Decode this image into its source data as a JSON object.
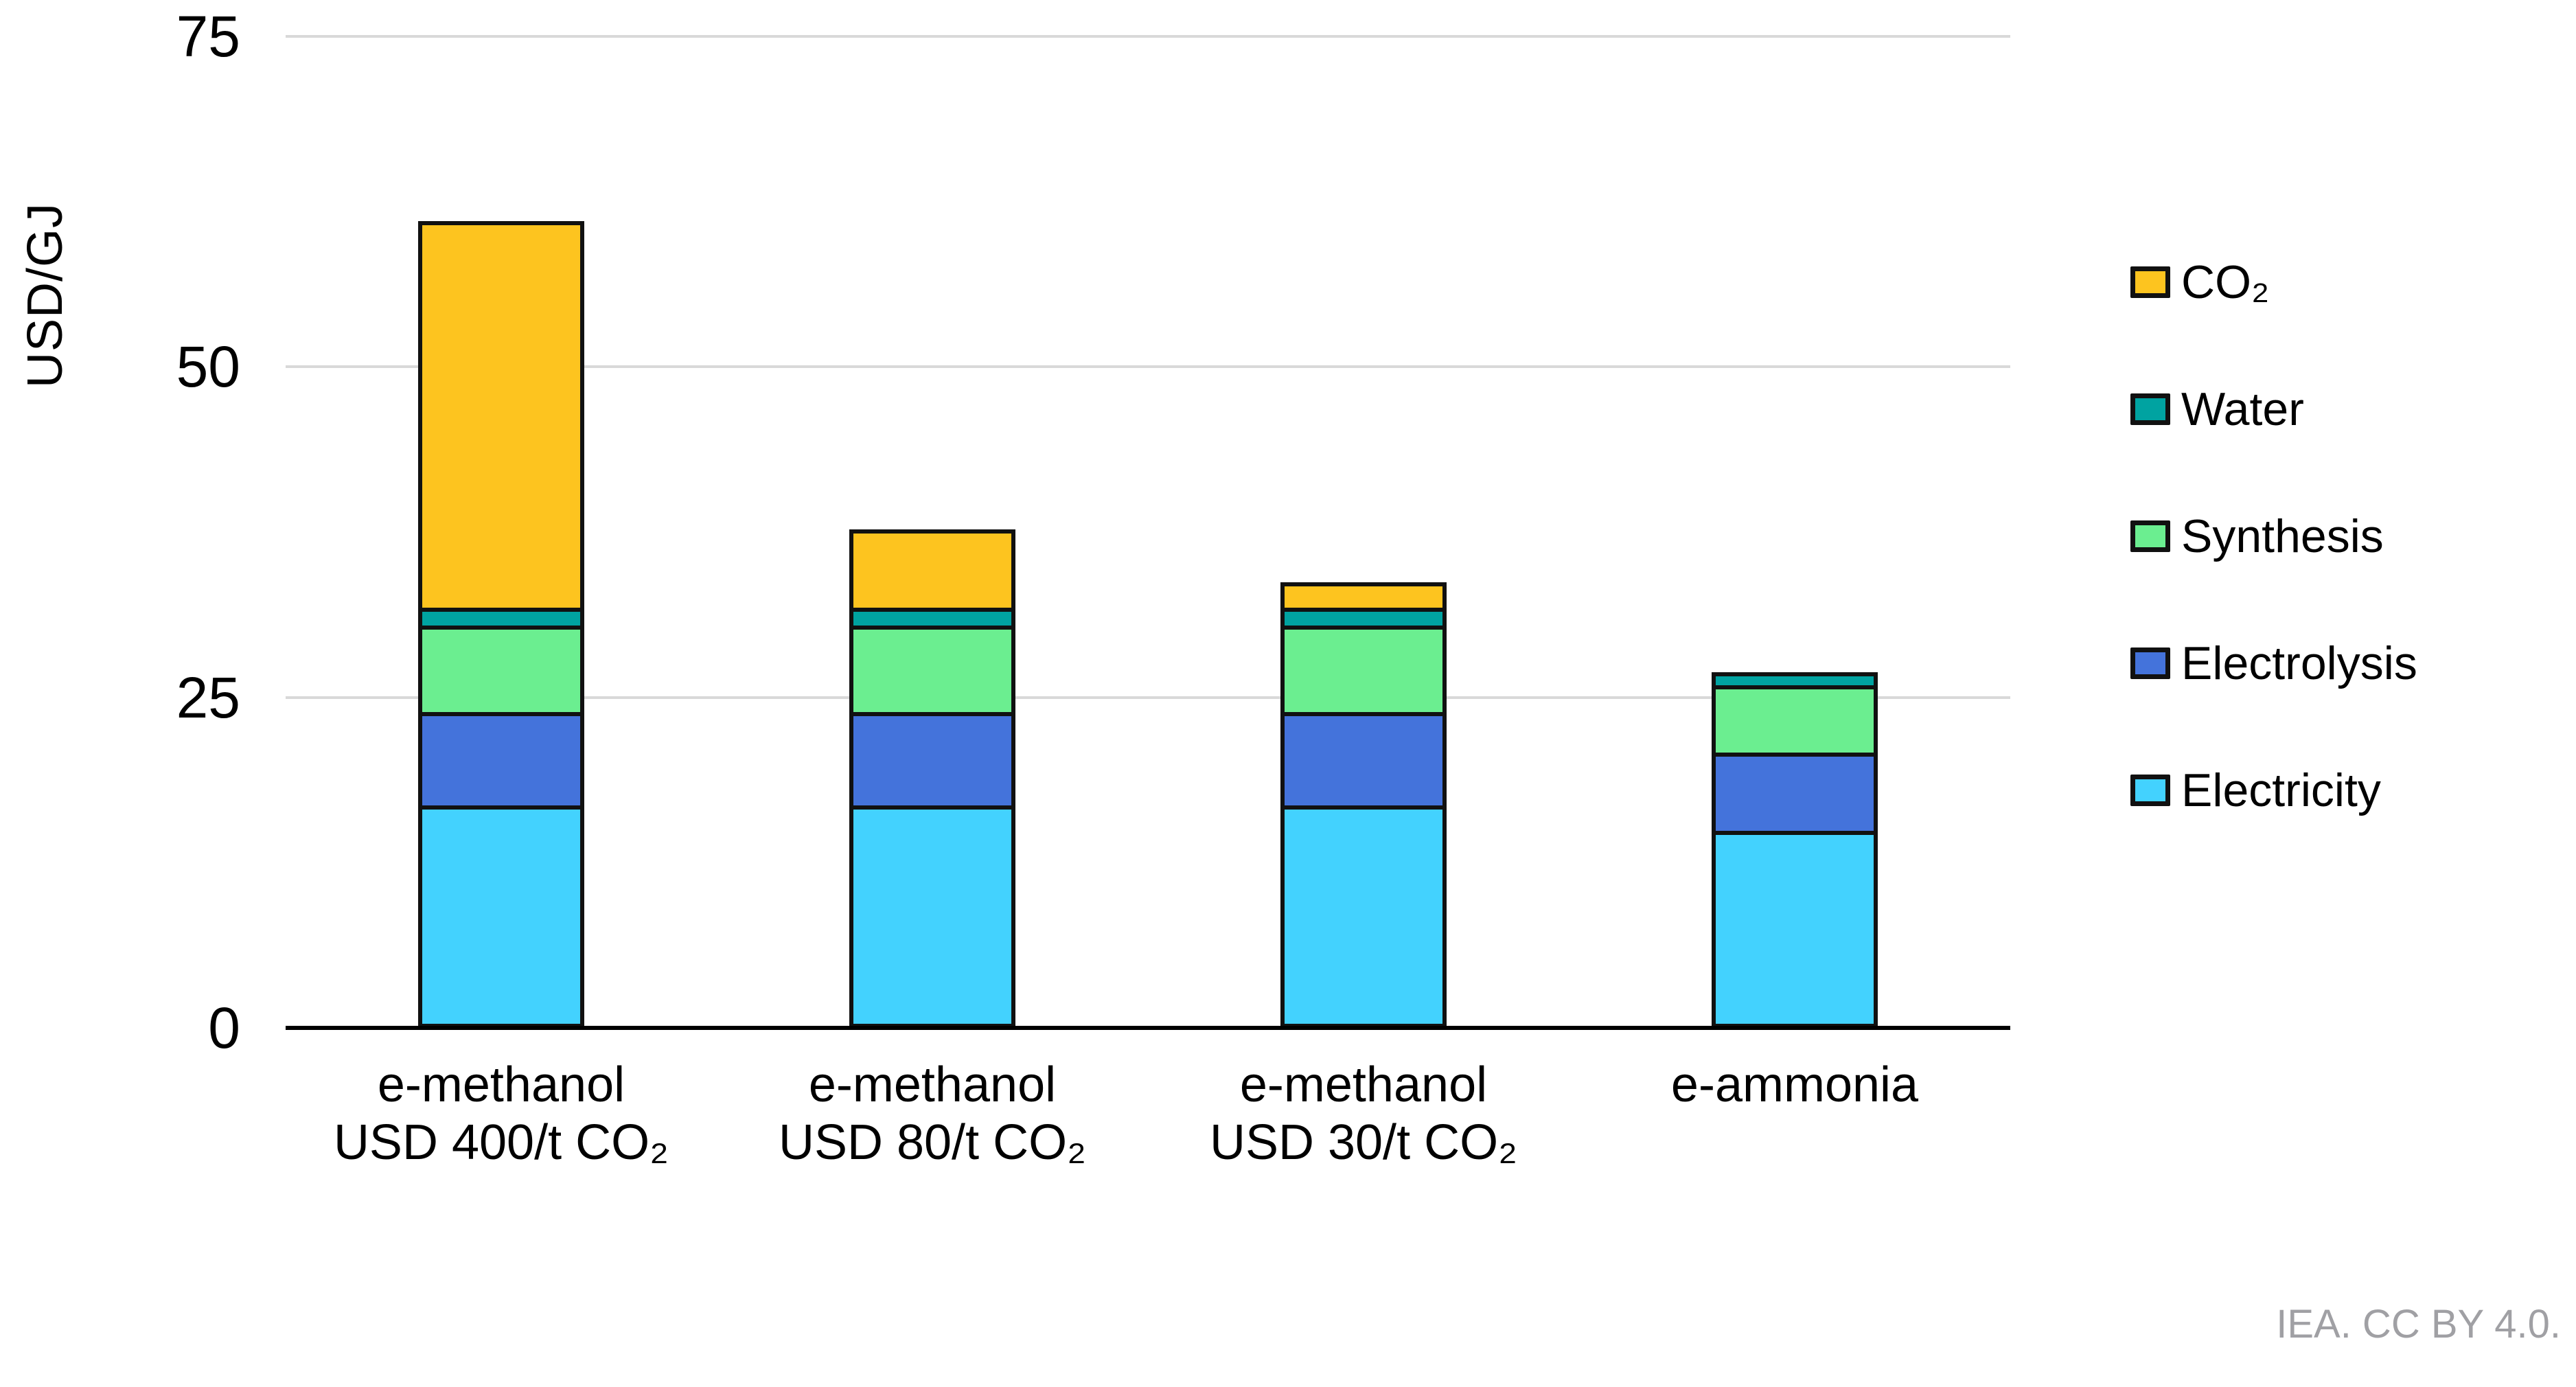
{
  "footer": {
    "credit": "IEA. CC BY 4.0."
  },
  "chart_data": {
    "type": "bar",
    "stacked": true,
    "title": "",
    "xlabel": "",
    "ylabel": "USD/GJ",
    "ylim": [
      0,
      75
    ],
    "yticks": [
      0,
      25,
      50,
      75
    ],
    "grid": "horizontal",
    "legend_position": "right",
    "categories": [
      {
        "id": "e-methanol-usd-400",
        "lines": [
          "e-methanol",
          "USD 400/t CO₂"
        ]
      },
      {
        "id": "e-methanol-usd-80",
        "lines": [
          "e-methanol",
          "USD 80/t CO₂"
        ]
      },
      {
        "id": "e-methanol-usd-30",
        "lines": [
          "e-methanol",
          "USD 30/t CO₂"
        ]
      },
      {
        "id": "e-ammonia",
        "lines": [
          "e-ammonia"
        ]
      }
    ],
    "series": [
      {
        "id": "electricity",
        "name": "Electricity",
        "color": "#43d2fe",
        "values": [
          16.8,
          16.8,
          16.8,
          14.9
        ]
      },
      {
        "id": "electrolysis",
        "name": "Electrolysis",
        "color": "#4473db",
        "values": [
          7.1,
          7.1,
          7.1,
          5.9
        ]
      },
      {
        "id": "synthesis",
        "name": "Synthesis",
        "color": "#6bee90",
        "values": [
          6.5,
          6.5,
          6.5,
          5.1
        ]
      },
      {
        "id": "water",
        "name": "Water",
        "color": "#00a3a1",
        "values": [
          1.4,
          1.4,
          1.4,
          1.0
        ]
      },
      {
        "id": "co2",
        "name": "CO₂",
        "color": "#fdc41f",
        "values": [
          29.2,
          5.9,
          1.9,
          0
        ]
      }
    ],
    "colors": {
      "gridline": "#d9d9d9",
      "axis": "#000000",
      "bar_border": "#111111",
      "tick_text": "#000000",
      "credit_text": "#a0a0a4"
    }
  }
}
